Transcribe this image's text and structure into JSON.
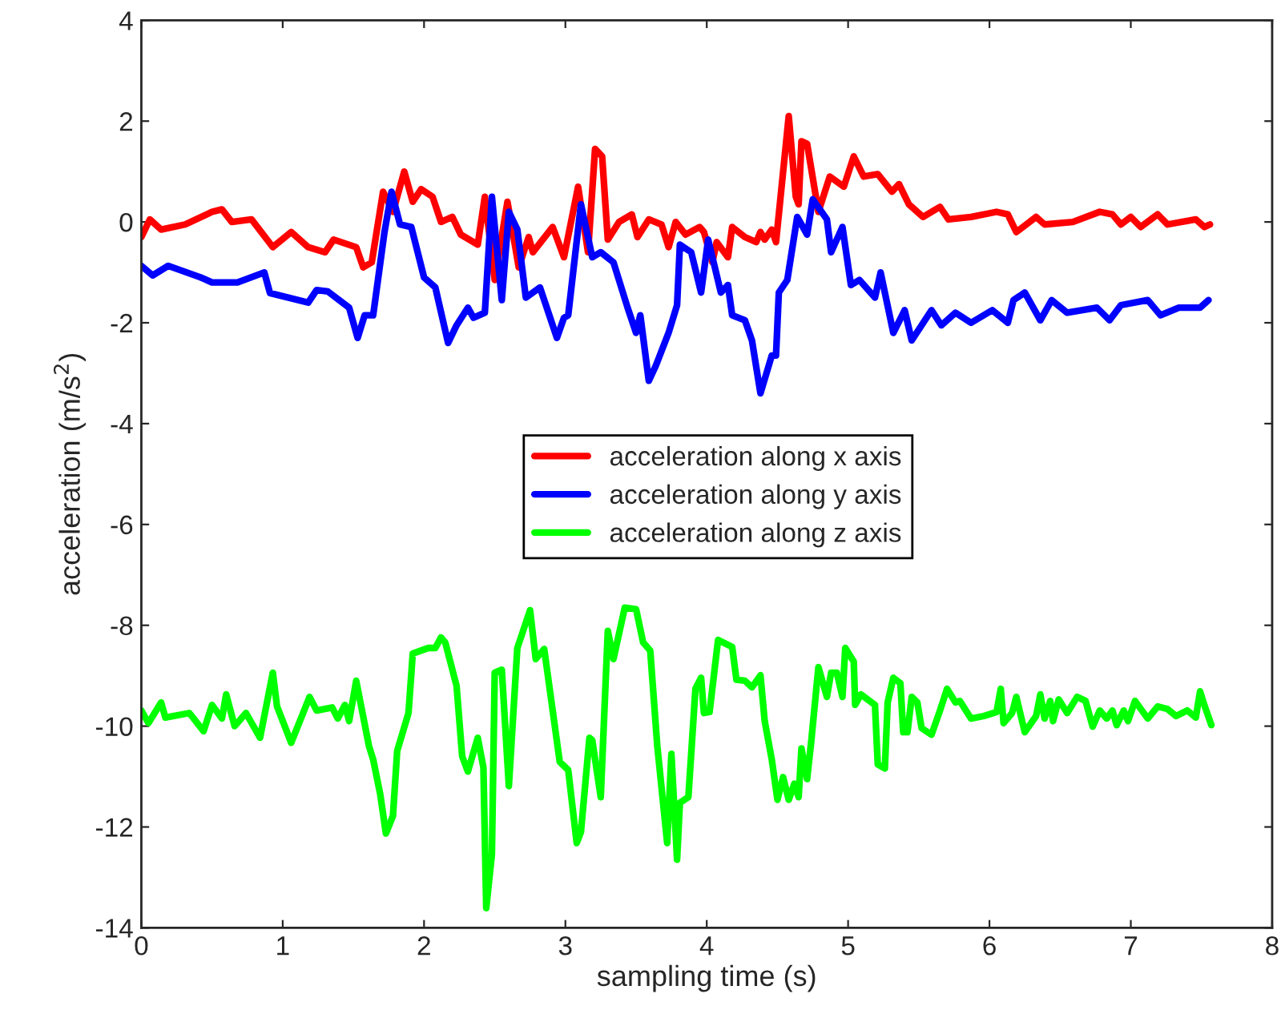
{
  "chart_data": {
    "type": "line",
    "xlabel": "sampling time (s)",
    "ylabel": "acceleration (m/s$^{2}$)",
    "xlim": [
      0,
      8
    ],
    "xticks": [
      0,
      1,
      2,
      3,
      4,
      5,
      6,
      7,
      8
    ],
    "ylim": [
      -14,
      4
    ],
    "yticks": [
      -14,
      -12,
      -10,
      -8,
      -6,
      -4,
      -2,
      0,
      2,
      4
    ],
    "grid": false,
    "legend": "center",
    "line_style": "solid",
    "marker": "none",
    "series": [
      {
        "name": "acceleration along x axis",
        "color": "#ff0000",
        "x": [
          0,
          0.06,
          0.14,
          0.31,
          0.5,
          0.57,
          0.64,
          0.78,
          0.93,
          1.06,
          1.18,
          1.3,
          1.36,
          1.52,
          1.57,
          1.63,
          1.71,
          1.78,
          1.86,
          1.92,
          1.98,
          2.06,
          2.12,
          2.2,
          2.26,
          2.38,
          2.43,
          2.5,
          2.59,
          2.67,
          2.74,
          2.77,
          2.91,
          2.99,
          3.09,
          3.16,
          3.21,
          3.26,
          3.3,
          3.38,
          3.47,
          3.51,
          3.59,
          3.68,
          3.73,
          3.78,
          3.85,
          3.95,
          3.98,
          4.04,
          4.07,
          4.15,
          4.18,
          4.27,
          4.35,
          4.38,
          4.41,
          4.46,
          4.49,
          4.58,
          4.63,
          4.65,
          4.67,
          4.71,
          4.79,
          4.87,
          4.97,
          5.04,
          5.11,
          5.21,
          5.31,
          5.36,
          5.43,
          5.53,
          5.65,
          5.71,
          5.87,
          6.05,
          6.13,
          6.19,
          6.33,
          6.39,
          6.59,
          6.78,
          6.87,
          6.93,
          7.0,
          7.07,
          7.19,
          7.26,
          7.46,
          7.52,
          7.56
        ],
        "values": [
          -0.3,
          0.05,
          -0.15,
          -0.05,
          0.2,
          0.25,
          0,
          0.05,
          -0.5,
          -0.2,
          -0.5,
          -0.6,
          -0.35,
          -0.5,
          -0.9,
          -0.8,
          0.6,
          0.2,
          1.0,
          0.4,
          0.65,
          0.5,
          0,
          0.1,
          -0.25,
          -0.45,
          0.5,
          -1.15,
          0.4,
          -0.9,
          -0.3,
          -0.6,
          -0.1,
          -0.7,
          0.7,
          -0.6,
          1.45,
          1.3,
          -0.35,
          0,
          0.15,
          -0.3,
          0.05,
          -0.05,
          -0.5,
          0,
          -0.25,
          -0.1,
          -0.2,
          -0.8,
          -0.4,
          -0.7,
          -0.1,
          -0.3,
          -0.4,
          -0.2,
          -0.35,
          -0.15,
          -0.4,
          2.1,
          0.5,
          0.35,
          1.6,
          1.55,
          0.2,
          0.9,
          0.7,
          1.3,
          0.9,
          0.95,
          0.6,
          0.75,
          0.35,
          0.1,
          0.3,
          0.05,
          0.1,
          0.2,
          0.15,
          -0.2,
          0.1,
          -0.05,
          0,
          0.2,
          0.15,
          -0.05,
          0.1,
          -0.1,
          0.15,
          -0.05,
          0.05,
          -0.1,
          -0.05
        ]
      },
      {
        "name": "acceleration along y axis",
        "color": "#0000ff",
        "x": [
          0,
          0.08,
          0.19,
          0.42,
          0.5,
          0.68,
          0.87,
          0.91,
          1.18,
          1.24,
          1.32,
          1.47,
          1.53,
          1.58,
          1.64,
          1.72,
          1.77,
          1.83,
          1.91,
          2.0,
          2.08,
          2.17,
          2.23,
          2.31,
          2.35,
          2.43,
          2.48,
          2.55,
          2.6,
          2.66,
          2.72,
          2.82,
          2.94,
          2.99,
          3.02,
          3.11,
          3.19,
          3.25,
          3.34,
          3.44,
          3.5,
          3.53,
          3.59,
          3.64,
          3.73,
          3.79,
          3.81,
          3.89,
          3.96,
          4.01,
          4.1,
          4.15,
          4.18,
          4.27,
          4.32,
          4.38,
          4.46,
          4.49,
          4.51,
          4.57,
          4.64,
          4.71,
          4.75,
          4.85,
          4.88,
          4.96,
          5.02,
          5.08,
          5.19,
          5.23,
          5.32,
          5.4,
          5.45,
          5.59,
          5.66,
          5.76,
          5.87,
          6.02,
          6.13,
          6.17,
          6.25,
          6.36,
          6.44,
          6.55,
          6.76,
          6.85,
          6.93,
          7.12,
          7.21,
          7.34,
          7.49,
          7.55
        ],
        "values": [
          -0.87,
          -1.06,
          -0.87,
          -1.1,
          -1.2,
          -1.2,
          -1.0,
          -1.41,
          -1.6,
          -1.35,
          -1.38,
          -1.7,
          -2.3,
          -1.85,
          -1.85,
          -0.2,
          0.6,
          -0.05,
          -0.1,
          -1.1,
          -1.3,
          -2.4,
          -2.05,
          -1.7,
          -1.9,
          -1.8,
          0.5,
          -1.55,
          0.2,
          -0.15,
          -1.5,
          -1.3,
          -2.3,
          -1.9,
          -1.85,
          0.35,
          -0.7,
          -0.6,
          -0.8,
          -1.7,
          -2.2,
          -1.85,
          -3.15,
          -2.85,
          -2.2,
          -1.65,
          -0.45,
          -0.6,
          -1.4,
          -0.35,
          -1.4,
          -1.25,
          -1.85,
          -1.95,
          -2.35,
          -3.4,
          -2.65,
          -2.65,
          -1.4,
          -1.15,
          0.1,
          -0.25,
          0.45,
          0.05,
          -0.6,
          -0.1,
          -1.25,
          -1.15,
          -1.5,
          -1.0,
          -2.2,
          -1.75,
          -2.35,
          -1.75,
          -2.05,
          -1.8,
          -2.0,
          -1.75,
          -2.0,
          -1.55,
          -1.4,
          -1.95,
          -1.55,
          -1.8,
          -1.7,
          -1.95,
          -1.65,
          -1.55,
          -1.85,
          -1.7,
          -1.7,
          -1.55
        ]
      },
      {
        "name": "acceleration along z axis",
        "color": "#00ff00",
        "x": [
          0,
          0.05,
          0.14,
          0.17,
          0.34,
          0.44,
          0.5,
          0.57,
          0.6,
          0.66,
          0.74,
          0.84,
          0.93,
          0.96,
          1.06,
          1.19,
          1.24,
          1.35,
          1.39,
          1.44,
          1.47,
          1.52,
          1.61,
          1.64,
          1.69,
          1.73,
          1.78,
          1.81,
          1.89,
          1.92,
          2.03,
          2.08,
          2.12,
          2.15,
          2.23,
          2.27,
          2.31,
          2.38,
          2.42,
          2.44,
          2.48,
          2.5,
          2.55,
          2.6,
          2.66,
          2.75,
          2.79,
          2.85,
          2.96,
          3.02,
          3.08,
          3.11,
          3.17,
          3.19,
          3.25,
          3.3,
          3.34,
          3.42,
          3.5,
          3.55,
          3.6,
          3.65,
          3.72,
          3.75,
          3.79,
          3.81,
          3.87,
          3.92,
          3.96,
          3.98,
          4.02,
          4.08,
          4.18,
          4.21,
          4.27,
          4.32,
          4.38,
          4.41,
          4.46,
          4.5,
          4.54,
          4.58,
          4.62,
          4.65,
          4.67,
          4.71,
          4.74,
          4.79,
          4.85,
          4.88,
          4.92,
          4.96,
          4.98,
          5.04,
          5.05,
          5.09,
          5.19,
          5.21,
          5.26,
          5.28,
          5.32,
          5.37,
          5.39,
          5.42,
          5.45,
          5.49,
          5.52,
          5.59,
          5.65,
          5.7,
          5.76,
          5.79,
          5.87,
          5.96,
          6.05,
          6.08,
          6.1,
          6.16,
          6.19,
          6.25,
          6.33,
          6.36,
          6.39,
          6.43,
          6.45,
          6.49,
          6.55,
          6.62,
          6.68,
          6.73,
          6.78,
          6.83,
          6.87,
          6.9,
          6.95,
          6.98,
          7.03,
          7.12,
          7.19,
          7.26,
          7.32,
          7.4,
          7.46,
          7.49,
          7.52,
          7.57
        ],
        "values": [
          -9.69,
          -9.94,
          -9.53,
          -9.83,
          -9.74,
          -10.1,
          -9.58,
          -9.85,
          -9.37,
          -10.0,
          -9.74,
          -10.23,
          -8.94,
          -9.61,
          -10.33,
          -9.42,
          -9.69,
          -9.63,
          -9.85,
          -9.58,
          -9.9,
          -9.1,
          -10.39,
          -10.66,
          -11.35,
          -12.13,
          -11.78,
          -10.49,
          -9.74,
          -8.56,
          -8.45,
          -8.45,
          -8.24,
          -8.34,
          -9.2,
          -10.6,
          -10.9,
          -10.23,
          -10.82,
          -13.61,
          -12.54,
          -8.94,
          -8.88,
          -11.19,
          -8.45,
          -7.7,
          -8.67,
          -8.47,
          -10.71,
          -10.87,
          -12.32,
          -12.1,
          -10.23,
          -10.28,
          -11.41,
          -8.11,
          -8.67,
          -7.65,
          -7.68,
          -8.34,
          -8.5,
          -10.39,
          -12.32,
          -10.55,
          -12.65,
          -11.52,
          -11.41,
          -9.26,
          -9.04,
          -9.74,
          -9.72,
          -8.29,
          -8.43,
          -9.08,
          -9.1,
          -9.23,
          -8.99,
          -9.9,
          -10.66,
          -11.46,
          -11.01,
          -11.46,
          -11.14,
          -11.41,
          -10.44,
          -11.05,
          -10.28,
          -8.83,
          -9.42,
          -8.94,
          -8.94,
          -9.42,
          -8.45,
          -8.72,
          -9.58,
          -9.37,
          -9.58,
          -10.76,
          -10.84,
          -9.53,
          -9.04,
          -9.15,
          -10.12,
          -10.12,
          -9.42,
          -9.53,
          -10.04,
          -10.17,
          -9.69,
          -9.26,
          -9.53,
          -9.5,
          -9.85,
          -9.8,
          -9.72,
          -9.26,
          -9.94,
          -9.74,
          -9.42,
          -10.12,
          -9.8,
          -9.37,
          -9.85,
          -9.5,
          -9.9,
          -9.47,
          -9.74,
          -9.42,
          -9.5,
          -10.01,
          -9.69,
          -9.85,
          -9.69,
          -9.98,
          -9.69,
          -9.9,
          -9.5,
          -9.85,
          -9.61,
          -9.66,
          -9.8,
          -9.69,
          -9.83,
          -9.31,
          -9.58,
          -9.98
        ]
      }
    ]
  }
}
